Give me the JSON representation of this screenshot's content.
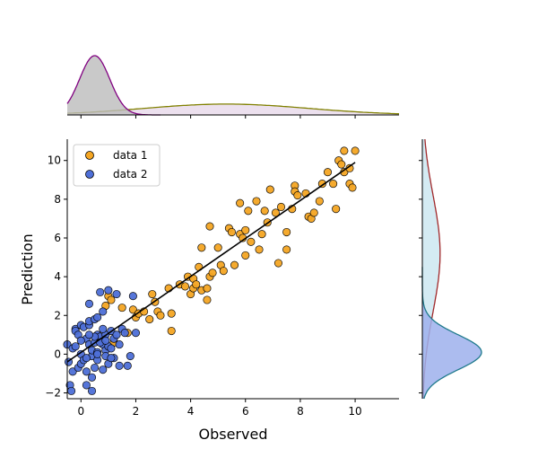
{
  "chart_data": {
    "type": "scatter",
    "title": "",
    "xlabel": "Observed",
    "ylabel": "Prediction",
    "xlim": [
      -0.5,
      11.6
    ],
    "ylim": [
      -2.3,
      11.1
    ],
    "xticks": [
      0,
      2,
      4,
      6,
      8,
      10
    ],
    "yticks": [
      -2,
      0,
      2,
      4,
      6,
      8,
      10
    ],
    "legend_position": "top-left",
    "series": [
      {
        "name": "data 1",
        "color": "#f5a623",
        "points": [
          [
            0.9,
            2.5
          ],
          [
            1.0,
            3.0
          ],
          [
            1.1,
            2.8
          ],
          [
            1.2,
            0.6
          ],
          [
            1.5,
            2.4
          ],
          [
            1.7,
            1.1
          ],
          [
            1.9,
            2.3
          ],
          [
            2.0,
            1.9
          ],
          [
            2.1,
            2.1
          ],
          [
            2.3,
            2.2
          ],
          [
            2.5,
            1.8
          ],
          [
            2.6,
            3.1
          ],
          [
            2.7,
            2.7
          ],
          [
            2.8,
            2.2
          ],
          [
            2.9,
            2.0
          ],
          [
            3.2,
            3.4
          ],
          [
            3.3,
            2.1
          ],
          [
            3.3,
            1.2
          ],
          [
            3.6,
            3.6
          ],
          [
            3.8,
            3.5
          ],
          [
            3.9,
            4.0
          ],
          [
            4.0,
            3.1
          ],
          [
            4.1,
            3.9
          ],
          [
            4.1,
            3.4
          ],
          [
            4.2,
            3.6
          ],
          [
            4.3,
            4.5
          ],
          [
            4.4,
            3.3
          ],
          [
            4.6,
            3.4
          ],
          [
            4.7,
            4.0
          ],
          [
            4.8,
            4.2
          ],
          [
            4.6,
            2.8
          ],
          [
            4.4,
            5.5
          ],
          [
            4.7,
            6.6
          ],
          [
            5.0,
            5.5
          ],
          [
            5.1,
            4.6
          ],
          [
            5.2,
            4.3
          ],
          [
            5.4,
            6.5
          ],
          [
            5.5,
            6.3
          ],
          [
            5.6,
            4.6
          ],
          [
            5.8,
            7.8
          ],
          [
            5.8,
            6.2
          ],
          [
            5.9,
            6.0
          ],
          [
            6.0,
            6.4
          ],
          [
            6.0,
            5.1
          ],
          [
            6.1,
            7.4
          ],
          [
            6.2,
            5.8
          ],
          [
            6.4,
            7.9
          ],
          [
            6.5,
            5.4
          ],
          [
            6.6,
            6.2
          ],
          [
            6.7,
            7.4
          ],
          [
            6.8,
            6.8
          ],
          [
            6.9,
            8.5
          ],
          [
            7.1,
            7.3
          ],
          [
            7.2,
            4.7
          ],
          [
            7.3,
            7.6
          ],
          [
            7.5,
            6.3
          ],
          [
            7.5,
            5.4
          ],
          [
            7.7,
            7.5
          ],
          [
            7.8,
            8.7
          ],
          [
            7.8,
            8.4
          ],
          [
            7.9,
            8.2
          ],
          [
            8.2,
            8.3
          ],
          [
            8.3,
            7.1
          ],
          [
            8.4,
            7.0
          ],
          [
            8.5,
            7.3
          ],
          [
            8.7,
            7.9
          ],
          [
            8.8,
            8.8
          ],
          [
            9.0,
            9.4
          ],
          [
            9.2,
            8.8
          ],
          [
            9.3,
            7.5
          ],
          [
            9.4,
            10.0
          ],
          [
            9.5,
            9.8
          ],
          [
            9.6,
            10.5
          ],
          [
            9.6,
            9.4
          ],
          [
            9.8,
            9.6
          ],
          [
            9.8,
            8.8
          ],
          [
            9.9,
            8.6
          ],
          [
            10.0,
            10.5
          ]
        ]
      },
      {
        "name": "data 2",
        "color": "#4e6fd8",
        "points": [
          [
            -0.5,
            0.5
          ],
          [
            -0.45,
            -0.4
          ],
          [
            -0.4,
            -1.6
          ],
          [
            -0.35,
            -1.9
          ],
          [
            -0.3,
            0.3
          ],
          [
            -0.3,
            -0.9
          ],
          [
            -0.2,
            1.3
          ],
          [
            -0.2,
            1.2
          ],
          [
            -0.1,
            -0.7
          ],
          [
            -0.1,
            1.0
          ],
          [
            0.0,
            -0.5
          ],
          [
            0.0,
            0.0
          ],
          [
            0.0,
            1.5
          ],
          [
            0.1,
            1.4
          ],
          [
            0.1,
            -0.3
          ],
          [
            0.2,
            0.8
          ],
          [
            0.2,
            -1.6
          ],
          [
            0.3,
            0.5
          ],
          [
            0.3,
            1.5
          ],
          [
            0.3,
            1.7
          ],
          [
            0.3,
            2.6
          ],
          [
            0.4,
            -0.1
          ],
          [
            0.4,
            -1.2
          ],
          [
            0.4,
            -1.9
          ],
          [
            0.4,
            0.2
          ],
          [
            0.5,
            0.6
          ],
          [
            0.5,
            -0.7
          ],
          [
            0.5,
            1.8
          ],
          [
            0.6,
            0.1
          ],
          [
            0.6,
            1.0
          ],
          [
            0.6,
            -0.3
          ],
          [
            0.7,
            0.9
          ],
          [
            0.7,
            3.2
          ],
          [
            0.8,
            2.2
          ],
          [
            0.8,
            0.5
          ],
          [
            0.8,
            -0.8
          ],
          [
            0.9,
            0.2
          ],
          [
            0.9,
            1.0
          ],
          [
            1.0,
            0.4
          ],
          [
            1.0,
            3.3
          ],
          [
            1.0,
            -0.5
          ],
          [
            1.1,
            1.2
          ],
          [
            1.1,
            0.3
          ],
          [
            1.2,
            0.8
          ],
          [
            1.2,
            -0.2
          ],
          [
            1.3,
            1.0
          ],
          [
            1.3,
            3.1
          ],
          [
            1.4,
            -0.6
          ],
          [
            1.5,
            1.3
          ],
          [
            1.6,
            1.1
          ],
          [
            1.7,
            -0.6
          ],
          [
            1.8,
            -0.1
          ],
          [
            1.9,
            3.0
          ],
          [
            2.0,
            1.1
          ],
          [
            0.2,
            -0.2
          ],
          [
            0.6,
            0.0
          ],
          [
            0.9,
            -0.1
          ],
          [
            0.0,
            0.7
          ],
          [
            -0.2,
            0.4
          ],
          [
            0.5,
            0.9
          ],
          [
            0.8,
            1.3
          ],
          [
            1.1,
            -0.2
          ],
          [
            0.3,
            1.0
          ],
          [
            0.6,
            1.9
          ],
          [
            0.7,
            0.6
          ],
          [
            1.4,
            0.5
          ],
          [
            0.2,
            -0.9
          ],
          [
            0.9,
            0.7
          ]
        ]
      }
    ],
    "fit_line": {
      "x": [
        -0.5,
        10.0
      ],
      "y": [
        -0.4,
        9.9
      ],
      "color": "#000000"
    },
    "top_marginal": [
      {
        "series": "data 1",
        "color": "#808000",
        "fill": "#e7d8ea",
        "mean": 5.3,
        "sd": 3.0,
        "xrange": [
          -0.5,
          11.6
        ]
      },
      {
        "series": "data 2",
        "color": "#800080",
        "fill": "#bbbbbb",
        "mean": 0.5,
        "sd": 0.55,
        "xrange": [
          -0.5,
          2.9
        ]
      }
    ],
    "right_marginal": [
      {
        "series": "data 1",
        "color": "#a0282a",
        "fill": "#cde8f1",
        "mean": 5.2,
        "sd": 3.0,
        "yrange": [
          -2.3,
          11.1
        ]
      },
      {
        "series": "data 2",
        "color": "#1f7a8c",
        "fill": "#9db0ec",
        "mean": 0.1,
        "sd": 0.9,
        "yrange": [
          -2.3,
          4.5
        ]
      }
    ]
  }
}
